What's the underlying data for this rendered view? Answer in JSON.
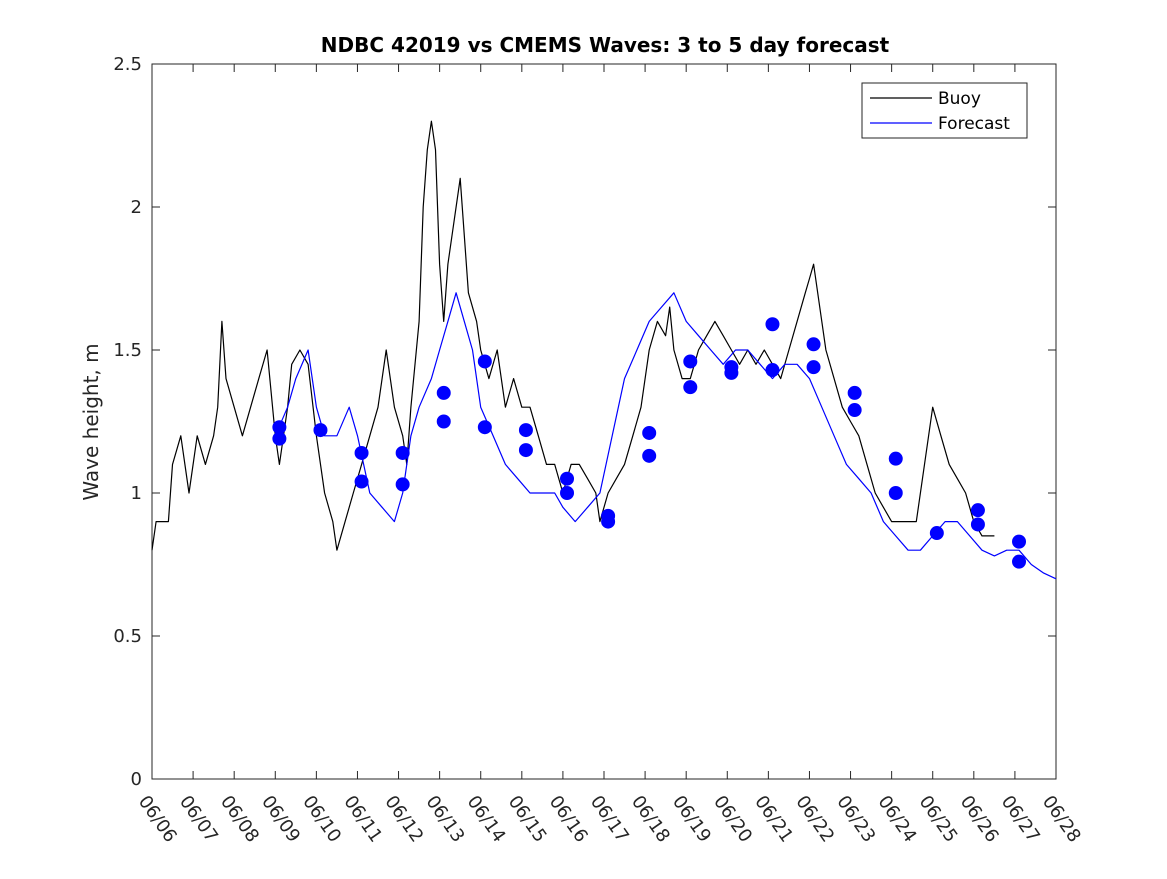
{
  "chart_data": {
    "type": "line",
    "title": "NDBC 42019 vs CMEMS Waves: 3 to 5 day forecast",
    "xlabel": "",
    "ylabel": "Wave height, m",
    "xlim": [
      0,
      22
    ],
    "ylim": [
      0,
      2.5
    ],
    "grid": false,
    "legend_position": "top-right",
    "x_tick_labels": [
      "06/06",
      "06/07",
      "06/08",
      "06/09",
      "06/10",
      "06/11",
      "06/12",
      "06/13",
      "06/14",
      "06/15",
      "06/16",
      "06/17",
      "06/18",
      "06/19",
      "06/20",
      "06/21",
      "06/22",
      "06/23",
      "06/24",
      "06/25",
      "06/26",
      "06/27",
      "06/28"
    ],
    "y_ticks": [
      0,
      0.5,
      1,
      1.5,
      2,
      2.5
    ],
    "y_tick_labels": [
      "0",
      "0.5",
      "1",
      "1.5",
      "2",
      "2.5"
    ],
    "legend": [
      {
        "label": "Buoy",
        "color": "#000000"
      },
      {
        "label": "Forecast",
        "color": "#0000ff"
      }
    ],
    "series": [
      {
        "name": "Buoy",
        "color": "#000000",
        "points": [
          [
            0,
            0.8
          ],
          [
            0.1,
            0.9
          ],
          [
            0.4,
            0.9
          ],
          [
            0.5,
            1.1
          ],
          [
            0.7,
            1.2
          ],
          [
            0.9,
            1.0
          ],
          [
            1.1,
            1.2
          ],
          [
            1.3,
            1.1
          ],
          [
            1.5,
            1.2
          ],
          [
            1.6,
            1.3
          ],
          [
            1.7,
            1.6
          ],
          [
            1.8,
            1.4
          ],
          [
            2.0,
            1.3
          ],
          [
            2.2,
            1.2
          ],
          [
            2.4,
            1.3
          ],
          [
            2.6,
            1.4
          ],
          [
            2.8,
            1.5
          ],
          [
            3.0,
            1.2
          ],
          [
            3.1,
            1.1
          ],
          [
            3.3,
            1.3
          ],
          [
            3.4,
            1.45
          ],
          [
            3.6,
            1.5
          ],
          [
            3.8,
            1.45
          ],
          [
            4.0,
            1.2
          ],
          [
            4.2,
            1.0
          ],
          [
            4.4,
            0.9
          ],
          [
            4.5,
            0.8
          ],
          [
            4.7,
            0.9
          ],
          [
            4.9,
            1.0
          ],
          [
            5.1,
            1.1
          ],
          [
            5.3,
            1.2
          ],
          [
            5.5,
            1.3
          ],
          [
            5.7,
            1.5
          ],
          [
            5.9,
            1.3
          ],
          [
            6.1,
            1.2
          ],
          [
            6.2,
            1.1
          ],
          [
            6.3,
            1.3
          ],
          [
            6.5,
            1.6
          ],
          [
            6.6,
            2.0
          ],
          [
            6.7,
            2.2
          ],
          [
            6.8,
            2.3
          ],
          [
            6.9,
            2.2
          ],
          [
            7.0,
            1.8
          ],
          [
            7.1,
            1.6
          ],
          [
            7.2,
            1.8
          ],
          [
            7.3,
            1.9
          ],
          [
            7.4,
            2.0
          ],
          [
            7.5,
            2.1
          ],
          [
            7.6,
            1.9
          ],
          [
            7.7,
            1.7
          ],
          [
            7.9,
            1.6
          ],
          [
            8.0,
            1.5
          ],
          [
            8.2,
            1.4
          ],
          [
            8.4,
            1.5
          ],
          [
            8.5,
            1.4
          ],
          [
            8.6,
            1.3
          ],
          [
            8.8,
            1.4
          ],
          [
            9.0,
            1.3
          ],
          [
            9.2,
            1.3
          ],
          [
            9.4,
            1.2
          ],
          [
            9.6,
            1.1
          ],
          [
            9.8,
            1.1
          ],
          [
            10.0,
            1.0
          ],
          [
            10.2,
            1.1
          ],
          [
            10.4,
            1.1
          ],
          [
            10.6,
            1.05
          ],
          [
            10.8,
            1.0
          ],
          [
            10.9,
            0.9
          ],
          [
            11.1,
            1.0
          ],
          [
            11.3,
            1.05
          ],
          [
            11.5,
            1.1
          ],
          [
            11.7,
            1.2
          ],
          [
            11.9,
            1.3
          ],
          [
            12.1,
            1.5
          ],
          [
            12.3,
            1.6
          ],
          [
            12.5,
            1.55
          ],
          [
            12.6,
            1.65
          ],
          [
            12.7,
            1.5
          ],
          [
            12.9,
            1.4
          ],
          [
            13.1,
            1.4
          ],
          [
            13.3,
            1.5
          ],
          [
            13.5,
            1.55
          ],
          [
            13.7,
            1.6
          ],
          [
            13.9,
            1.55
          ],
          [
            14.1,
            1.5
          ],
          [
            14.3,
            1.45
          ],
          [
            14.5,
            1.5
          ],
          [
            14.7,
            1.45
          ],
          [
            14.9,
            1.5
          ],
          [
            15.1,
            1.45
          ],
          [
            15.3,
            1.4
          ],
          [
            15.5,
            1.5
          ],
          [
            15.7,
            1.6
          ],
          [
            15.9,
            1.7
          ],
          [
            16.0,
            1.75
          ],
          [
            16.1,
            1.8
          ],
          [
            16.3,
            1.6
          ],
          [
            16.4,
            1.5
          ],
          [
            16.6,
            1.4
          ],
          [
            16.8,
            1.3
          ],
          [
            17.0,
            1.25
          ],
          [
            17.2,
            1.2
          ],
          [
            17.4,
            1.1
          ],
          [
            17.6,
            1.0
          ],
          [
            17.8,
            0.95
          ],
          [
            18.0,
            0.9
          ],
          [
            18.2,
            0.9
          ],
          [
            18.4,
            0.9
          ],
          [
            18.6,
            0.9
          ],
          [
            18.8,
            1.1
          ],
          [
            18.9,
            1.2
          ],
          [
            19.0,
            1.3
          ],
          [
            19.2,
            1.2
          ],
          [
            19.4,
            1.1
          ],
          [
            19.6,
            1.05
          ],
          [
            19.8,
            1.0
          ],
          [
            20.0,
            0.9
          ],
          [
            20.2,
            0.85
          ],
          [
            20.5,
            0.85
          ]
        ]
      },
      {
        "name": "Forecast",
        "color": "#0000ff",
        "points": [
          [
            3.0,
            1.2
          ],
          [
            3.3,
            1.3
          ],
          [
            3.5,
            1.4
          ],
          [
            3.8,
            1.5
          ],
          [
            4.0,
            1.3
          ],
          [
            4.2,
            1.2
          ],
          [
            4.5,
            1.2
          ],
          [
            4.8,
            1.3
          ],
          [
            5.0,
            1.2
          ],
          [
            5.3,
            1.0
          ],
          [
            5.6,
            0.95
          ],
          [
            5.9,
            0.9
          ],
          [
            6.1,
            1.0
          ],
          [
            6.3,
            1.2
          ],
          [
            6.5,
            1.3
          ],
          [
            6.8,
            1.4
          ],
          [
            7.0,
            1.5
          ],
          [
            7.2,
            1.6
          ],
          [
            7.4,
            1.7
          ],
          [
            7.6,
            1.6
          ],
          [
            7.8,
            1.5
          ],
          [
            8.0,
            1.3
          ],
          [
            8.3,
            1.2
          ],
          [
            8.6,
            1.1
          ],
          [
            8.9,
            1.05
          ],
          [
            9.2,
            1.0
          ],
          [
            9.5,
            1.0
          ],
          [
            9.8,
            1.0
          ],
          [
            10.0,
            0.95
          ],
          [
            10.3,
            0.9
          ],
          [
            10.6,
            0.95
          ],
          [
            10.9,
            1.0
          ],
          [
            11.2,
            1.2
          ],
          [
            11.5,
            1.4
          ],
          [
            11.8,
            1.5
          ],
          [
            12.1,
            1.6
          ],
          [
            12.4,
            1.65
          ],
          [
            12.7,
            1.7
          ],
          [
            13.0,
            1.6
          ],
          [
            13.3,
            1.55
          ],
          [
            13.6,
            1.5
          ],
          [
            13.9,
            1.45
          ],
          [
            14.2,
            1.5
          ],
          [
            14.5,
            1.5
          ],
          [
            14.8,
            1.45
          ],
          [
            15.1,
            1.4
          ],
          [
            15.4,
            1.45
          ],
          [
            15.7,
            1.45
          ],
          [
            16.0,
            1.4
          ],
          [
            16.3,
            1.3
          ],
          [
            16.6,
            1.2
          ],
          [
            16.9,
            1.1
          ],
          [
            17.2,
            1.05
          ],
          [
            17.5,
            1.0
          ],
          [
            17.8,
            0.9
          ],
          [
            18.1,
            0.85
          ],
          [
            18.4,
            0.8
          ],
          [
            18.7,
            0.8
          ],
          [
            19.0,
            0.85
          ],
          [
            19.3,
            0.9
          ],
          [
            19.6,
            0.9
          ],
          [
            19.9,
            0.85
          ],
          [
            20.2,
            0.8
          ],
          [
            20.5,
            0.78
          ],
          [
            20.8,
            0.8
          ],
          [
            21.1,
            0.8
          ],
          [
            21.4,
            0.75
          ],
          [
            21.7,
            0.72
          ],
          [
            22.0,
            0.7
          ]
        ]
      }
    ],
    "forecast_markers": [
      [
        3.1,
        1.23
      ],
      [
        3.1,
        1.19
      ],
      [
        4.1,
        1.22
      ],
      [
        5.1,
        1.14
      ],
      [
        5.1,
        1.04
      ],
      [
        6.1,
        1.14
      ],
      [
        6.1,
        1.03
      ],
      [
        7.1,
        1.35
      ],
      [
        7.1,
        1.25
      ],
      [
        8.1,
        1.46
      ],
      [
        8.1,
        1.23
      ],
      [
        9.1,
        1.22
      ],
      [
        9.1,
        1.15
      ],
      [
        10.1,
        1.05
      ],
      [
        10.1,
        1.0
      ],
      [
        11.1,
        0.92
      ],
      [
        11.1,
        0.9
      ],
      [
        12.1,
        1.21
      ],
      [
        12.1,
        1.13
      ],
      [
        13.1,
        1.46
      ],
      [
        13.1,
        1.37
      ],
      [
        14.1,
        1.44
      ],
      [
        14.1,
        1.42
      ],
      [
        15.1,
        1.59
      ],
      [
        15.1,
        1.43
      ],
      [
        16.1,
        1.52
      ],
      [
        16.1,
        1.44
      ],
      [
        17.1,
        1.35
      ],
      [
        17.1,
        1.29
      ],
      [
        18.1,
        1.12
      ],
      [
        18.1,
        1.0
      ],
      [
        19.1,
        0.86
      ],
      [
        20.1,
        0.94
      ],
      [
        20.1,
        0.89
      ],
      [
        21.1,
        0.83
      ],
      [
        21.1,
        0.76
      ]
    ]
  }
}
